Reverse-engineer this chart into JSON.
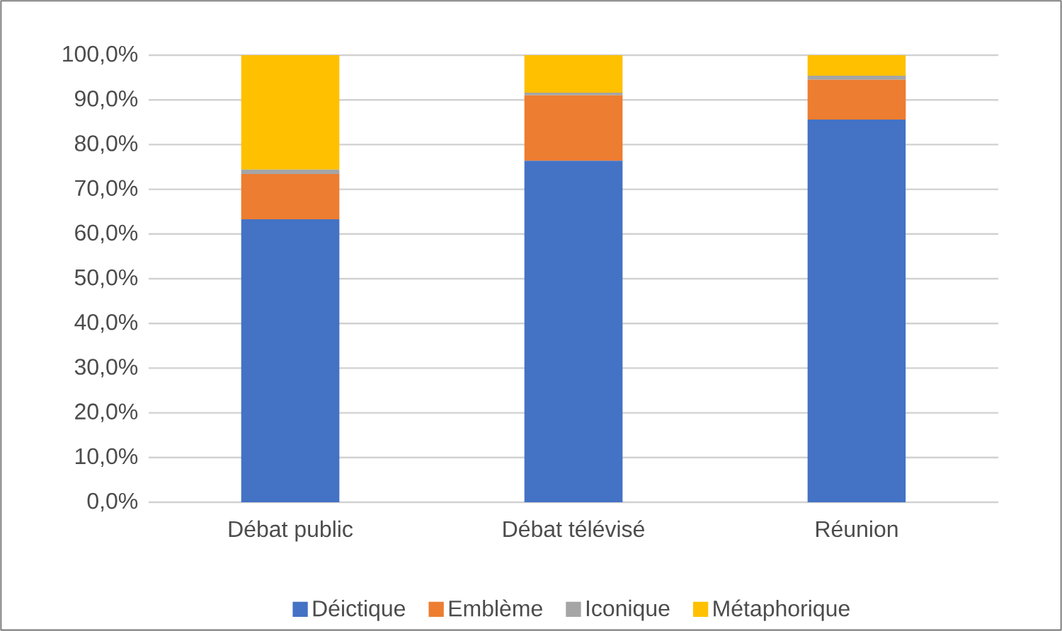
{
  "chart_data": {
    "type": "bar",
    "stacked": true,
    "categories": [
      "Débat public",
      "Débat télévisé",
      "Réunion"
    ],
    "series": [
      {
        "name": "Déictique",
        "color": "#4472c4",
        "values": [
          63.3,
          76.4,
          85.6
        ]
      },
      {
        "name": "Emblème",
        "color": "#ed7d31",
        "values": [
          10.1,
          14.6,
          8.9
        ]
      },
      {
        "name": "Iconique",
        "color": "#a5a5a5",
        "values": [
          1.0,
          0.6,
          0.9
        ]
      },
      {
        "name": "Métaphorique",
        "color": "#ffc000",
        "values": [
          25.6,
          8.4,
          4.6
        ]
      }
    ],
    "ylim": [
      0,
      100
    ],
    "yticks": [
      {
        "value": 0,
        "label": "0,0%"
      },
      {
        "value": 10,
        "label": "10,0%"
      },
      {
        "value": 20,
        "label": "20,0%"
      },
      {
        "value": 30,
        "label": "30,0%"
      },
      {
        "value": 40,
        "label": "40,0%"
      },
      {
        "value": 50,
        "label": "50,0%"
      },
      {
        "value": 60,
        "label": "60,0%"
      },
      {
        "value": 70,
        "label": "70,0%"
      },
      {
        "value": 80,
        "label": "80,0%"
      },
      {
        "value": 90,
        "label": "90,0%"
      },
      {
        "value": 100,
        "label": "100,0%"
      }
    ],
    "grid": "y",
    "legend": "bottom"
  }
}
